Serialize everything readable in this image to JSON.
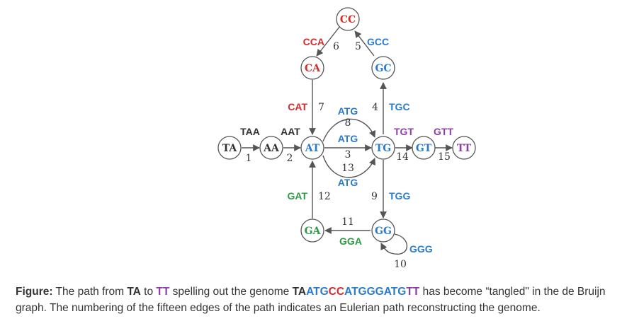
{
  "colors": {
    "red": "#d62b2b",
    "blue": "#2a7bcc",
    "green": "#2e9b45",
    "purple": "#8e3ea8",
    "black": "#333333",
    "edge": "#555555"
  },
  "nodes": [
    {
      "id": "CC",
      "label": "CC",
      "color": "red"
    },
    {
      "id": "CA",
      "label": "CA",
      "color": "red"
    },
    {
      "id": "GC",
      "label": "GC",
      "color": "blue"
    },
    {
      "id": "TA",
      "label": "TA",
      "color": "black"
    },
    {
      "id": "AA",
      "label": "AA",
      "color": "black"
    },
    {
      "id": "AT",
      "label": "AT",
      "color": "blue"
    },
    {
      "id": "TG",
      "label": "TG",
      "color": "blue"
    },
    {
      "id": "GT",
      "label": "GT",
      "color": "blue"
    },
    {
      "id": "TT",
      "label": "TT",
      "color": "purple"
    },
    {
      "id": "GA",
      "label": "GA",
      "color": "green"
    },
    {
      "id": "GG",
      "label": "GG",
      "color": "blue"
    }
  ],
  "edges": [
    {
      "num": "1",
      "kmer": "TAA",
      "color": "black"
    },
    {
      "num": "2",
      "kmer": "AAT",
      "color": "black"
    },
    {
      "num": "3",
      "kmer": "ATG",
      "color": "blue"
    },
    {
      "num": "4",
      "kmer": "TGC",
      "color": "blue"
    },
    {
      "num": "5",
      "kmer": "GCC",
      "color": "blue"
    },
    {
      "num": "6",
      "kmer": "CCA",
      "color": "red"
    },
    {
      "num": "7",
      "kmer": "CAT",
      "color": "red"
    },
    {
      "num": "8",
      "kmer": "ATG",
      "color": "blue"
    },
    {
      "num": "9",
      "kmer": "TGG",
      "color": "blue"
    },
    {
      "num": "10",
      "kmer": "GGG",
      "color": "blue"
    },
    {
      "num": "11",
      "kmer": "GGA",
      "color": "green"
    },
    {
      "num": "12",
      "kmer": "GAT",
      "color": "green"
    },
    {
      "num": "13",
      "kmer": "ATG",
      "color": "blue"
    },
    {
      "num": "14",
      "kmer": "TGT",
      "color": "purple"
    },
    {
      "num": "15",
      "kmer": "GTT",
      "color": "purple"
    }
  ],
  "caption": {
    "label": "Figure:",
    "text_1": " The path from ",
    "from": "TA",
    "text_2": " to ",
    "to": "TT",
    "text_3": " spelling out the genome ",
    "genome_segments": [
      {
        "text": "TA",
        "color": "black"
      },
      {
        "text": "ATG",
        "color": "blue"
      },
      {
        "text": "CC",
        "color": "red"
      },
      {
        "text": "ATG",
        "color": "blue"
      },
      {
        "text": "GG",
        "color": "blue"
      },
      {
        "text": "ATG",
        "color": "blue"
      },
      {
        "text": "TT",
        "color": "purple"
      }
    ],
    "text_4": " has become “tangled\" in the de Bruijn graph. The numbering of the fifteen edges of the path indicates an Eulerian path reconstructing the genome."
  }
}
